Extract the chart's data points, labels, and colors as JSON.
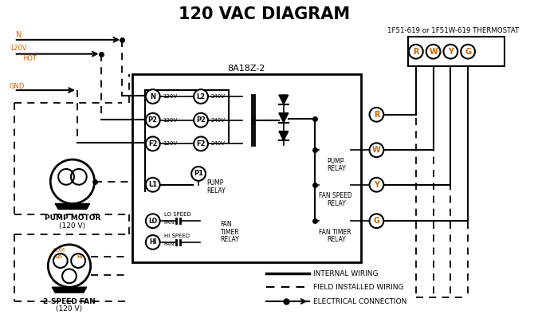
{
  "title": "120 VAC DIAGRAM",
  "title_fontsize": 15,
  "bg_color": "#ffffff",
  "thermostat_label": "1F51-619 or 1F51W-619 THERMOSTAT",
  "thermostat_terminals": [
    "R",
    "W",
    "Y",
    "G"
  ],
  "controller_label": "8A18Z-2",
  "internal_wiring_label": "INTERNAL WIRING",
  "field_wiring_label": "FIELD INSTALLED WIRING",
  "electrical_label": "ELECTRICAL CONNECTION",
  "orange_color": "#cc6600",
  "black_color": "#000000"
}
